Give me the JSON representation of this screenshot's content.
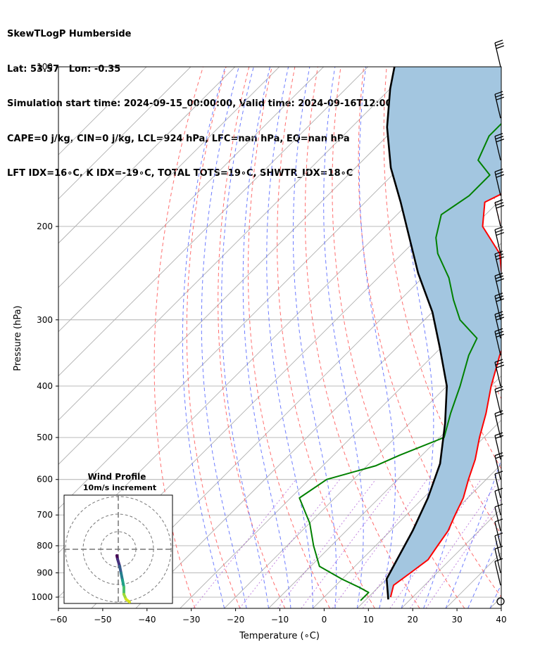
{
  "header": {
    "lines": [
      "SkewTLogP Humberside",
      "Lat: 53.57   Lon: -0.35",
      "Simulation start time: 2024-09-15_00:00:00, Valid time: 2024-09-16T12:00:00.00",
      "CAPE=0 j/kg, CIN=0 j/kg, LCL=924 hPa, LFC=nan hPa, EQ=nan hPa",
      "LFT IDX=16∘C, K IDX=-19∘C, TOTAL TOTS=19∘C, SHWTR_IDX=18∘C"
    ]
  },
  "chart_data": [
    {
      "type": "line",
      "subtype": "skew-t-log-p",
      "xlabel": "Temperature (∘C)",
      "ylabel": "Pressure (hPa)",
      "xlim": [
        -60,
        40
      ],
      "ylim": [
        1050,
        100
      ],
      "yscale": "log",
      "x_ticks": [
        -60,
        -50,
        -40,
        -30,
        -20,
        -10,
        0,
        10,
        20,
        30,
        40
      ],
      "x_tick_labels": [
        "−60",
        "−50",
        "−40",
        "−30",
        "−20",
        "−10",
        "0",
        "10",
        "20",
        "30",
        "40"
      ],
      "y_ticks": [
        100,
        200,
        300,
        400,
        500,
        600,
        700,
        800,
        900,
        1000
      ],
      "y_tick_labels": [
        "100",
        "200",
        "300",
        "400",
        "500",
        "600",
        "700",
        "800",
        "900",
        "1000"
      ],
      "grid": true,
      "series": [
        {
          "role": "temperature",
          "color": "#ff0000",
          "points": [
            [
              15,
              1000
            ],
            [
              13,
              950
            ],
            [
              14,
              900
            ],
            [
              15,
              850
            ],
            [
              14,
              800
            ],
            [
              13,
              750
            ],
            [
              11,
              700
            ],
            [
              9,
              650
            ],
            [
              6,
              600
            ],
            [
              3,
              550
            ],
            [
              -1,
              500
            ],
            [
              -5,
              450
            ],
            [
              -10,
              400
            ],
            [
              -15,
              350
            ],
            [
              -20,
              300
            ],
            [
              -25,
              275
            ],
            [
              -32,
              250
            ],
            [
              -38,
              225
            ],
            [
              -48,
              200
            ],
            [
              -53,
              180
            ],
            [
              -50,
              170
            ],
            [
              -48,
              150
            ],
            [
              -49,
              125
            ],
            [
              -51,
              100
            ]
          ]
        },
        {
          "role": "dewpoint",
          "color": "#008000",
          "points": [
            [
              9,
              1015
            ],
            [
              9,
              980
            ],
            [
              6,
              960
            ],
            [
              0,
              925
            ],
            [
              -8,
              875
            ],
            [
              -14,
              800
            ],
            [
              -20,
              725
            ],
            [
              -28,
              650
            ],
            [
              -26,
              600
            ],
            [
              -18,
              565
            ],
            [
              -15,
              540
            ],
            [
              -9,
              500
            ],
            [
              -13,
              450
            ],
            [
              -17,
              400
            ],
            [
              -22,
              350
            ],
            [
              -24,
              325
            ],
            [
              -32,
              300
            ],
            [
              -38,
              275
            ],
            [
              -44,
              250
            ],
            [
              -52,
              225
            ],
            [
              -56,
              210
            ],
            [
              -60,
              190
            ],
            [
              -58,
              175
            ],
            [
              -58,
              160
            ],
            [
              -64,
              150
            ],
            [
              -67,
              135
            ],
            [
              -67,
              125
            ],
            [
              -69,
              110
            ],
            [
              -67,
              100
            ]
          ]
        },
        {
          "role": "parcel",
          "color": "#000000",
          "points": [
            [
              15,
              1010
            ],
            [
              10,
              924
            ],
            [
              8,
              850
            ],
            [
              5,
              750
            ],
            [
              1,
              650
            ],
            [
              -4,
              560
            ],
            [
              -12,
              470
            ],
            [
              -20,
              400
            ],
            [
              -30,
              340
            ],
            [
              -40,
              290
            ],
            [
              -52,
              245
            ],
            [
              -62,
              210
            ],
            [
              -72,
              180
            ],
            [
              -82,
              155
            ],
            [
              -92,
              130
            ],
            [
              -100,
              110
            ],
            [
              -104,
              100
            ]
          ]
        }
      ],
      "shaded_area": {
        "between": "parcel and temperature",
        "color": "#a3c6e0"
      },
      "wind_barbs": {
        "side": "right",
        "x_position_temp": 40,
        "lowest_level_calm": true
      }
    },
    {
      "type": "scatter",
      "subtype": "hodograph",
      "title": "Wind Profile",
      "subtitle": "10m/s increment",
      "rings": 3
    }
  ]
}
